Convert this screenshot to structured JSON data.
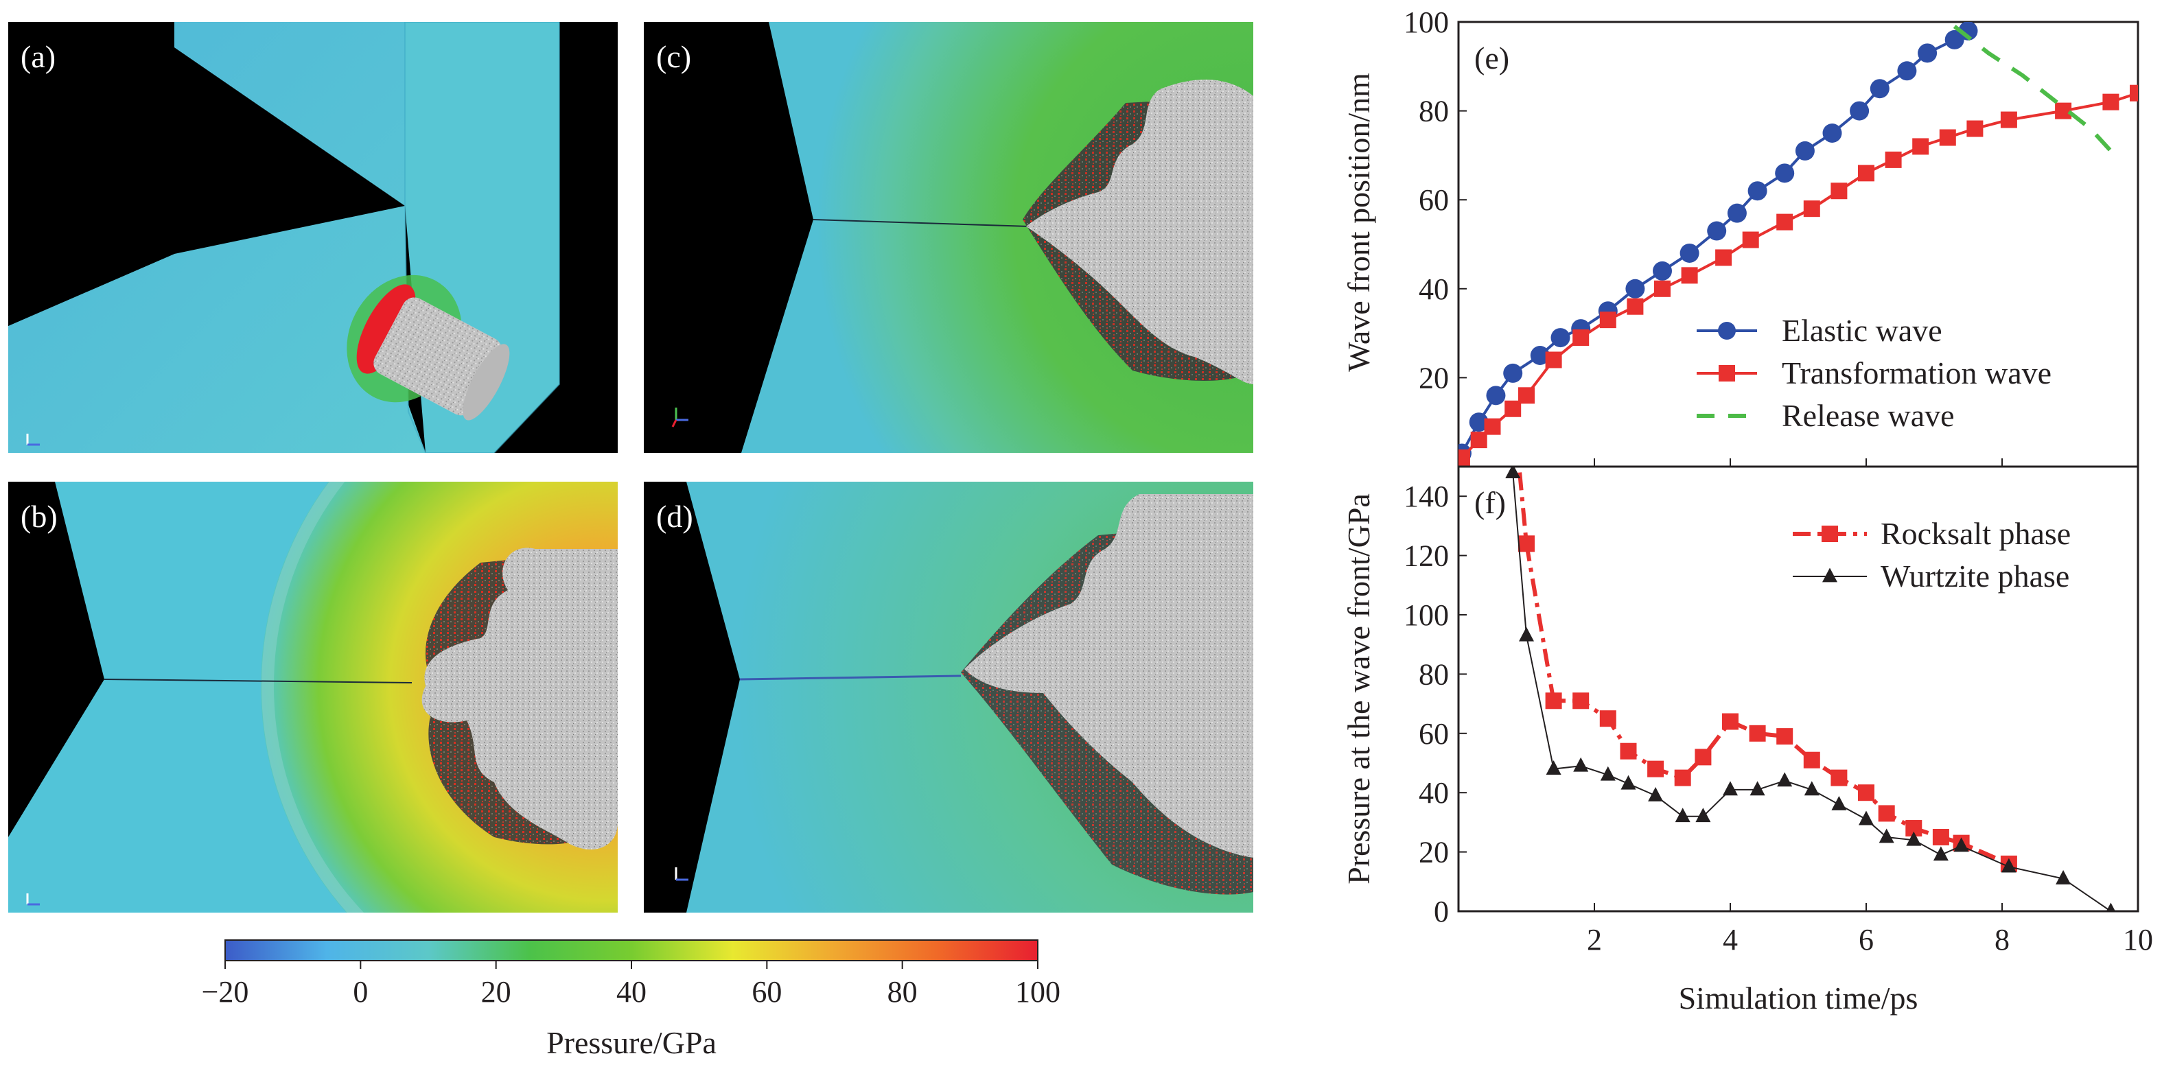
{
  "panels": {
    "a": {
      "label": "(a)"
    },
    "b": {
      "label": "(b)"
    },
    "c": {
      "label": "(c)"
    },
    "d": {
      "label": "(d)"
    }
  },
  "colorbar": {
    "title": "Pressure/GPa",
    "min": -20,
    "max": 100,
    "ticks": [
      "−20",
      "0",
      "20",
      "40",
      "60",
      "80",
      "100"
    ],
    "tick_values": [
      -20,
      0,
      20,
      40,
      60,
      80,
      100
    ],
    "colors": [
      "#3c5cc8",
      "#4fb4e8",
      "#5cc8c8",
      "#4cc24a",
      "#78cc30",
      "#e8e830",
      "#f0a830",
      "#f06a28",
      "#e82030"
    ]
  },
  "colors": {
    "elastic": "#2d4ea6",
    "transformation": "#e8312f",
    "release": "#4cbb47",
    "rocksalt": "#e8312f",
    "wurtzite": "#231f20",
    "background_black": "#000000",
    "material_cyan": "#52c4d8",
    "cluster_gray": "#bfbfbf"
  },
  "chart_data": [
    {
      "type": "line",
      "panel_label": "(e)",
      "xlabel": "",
      "ylabel": "Wave front position/nm",
      "xlim": [
        0,
        10
      ],
      "ylim": [
        0,
        100
      ],
      "yticks": [
        20,
        40,
        60,
        80,
        100
      ],
      "legend_position": "center-right",
      "series": [
        {
          "name": "Elastic wave",
          "color": "#2d4ea6",
          "marker": "circle",
          "x": [
            0.05,
            0.3,
            0.55,
            0.8,
            1.2,
            1.5,
            1.8,
            2.2,
            2.6,
            3.0,
            3.4,
            3.8,
            4.1,
            4.4,
            4.8,
            5.1,
            5.5,
            5.9,
            6.2,
            6.6,
            6.9,
            7.3,
            7.5
          ],
          "y": [
            3,
            10,
            16,
            21,
            25,
            29,
            31,
            35,
            40,
            44,
            48,
            53,
            57,
            62,
            66,
            71,
            75,
            80,
            85,
            89,
            93,
            96,
            98
          ]
        },
        {
          "name": "Transformation wave",
          "color": "#e8312f",
          "marker": "square",
          "x": [
            0.05,
            0.3,
            0.5,
            0.8,
            1.0,
            1.4,
            1.8,
            2.2,
            2.6,
            3.0,
            3.4,
            3.9,
            4.3,
            4.8,
            5.2,
            5.6,
            6.0,
            6.4,
            6.8,
            7.2,
            7.6,
            8.1,
            8.9,
            9.6,
            10.0
          ],
          "y": [
            2,
            6,
            9,
            13,
            16,
            24,
            29,
            33,
            36,
            40,
            43,
            47,
            51,
            55,
            58,
            62,
            66,
            69,
            72,
            74,
            76,
            78,
            80,
            82,
            84
          ]
        },
        {
          "name": "Release wave",
          "color": "#4cbb47",
          "marker": "none",
          "dashed": true,
          "x": [
            7.3,
            7.8,
            8.3,
            8.8,
            9.3,
            9.6
          ],
          "y": [
            99,
            93,
            88,
            82,
            76,
            71
          ]
        }
      ]
    },
    {
      "type": "line",
      "panel_label": "(f)",
      "xlabel": "Simulation time/ps",
      "ylabel": "Pressure at the wave front/GPa",
      "xlim": [
        0,
        10
      ],
      "ylim": [
        0,
        150
      ],
      "xticks": [
        2,
        4,
        6,
        8,
        10
      ],
      "yticks": [
        0,
        20,
        40,
        60,
        80,
        100,
        120,
        140
      ],
      "legend_position": "top-right",
      "series": [
        {
          "name": "Rocksalt phase",
          "color": "#e8312f",
          "marker": "square",
          "x": [
            0.85,
            1.0,
            1.4,
            1.8,
            2.2,
            2.5,
            2.9,
            3.3,
            3.6,
            4.0,
            4.4,
            4.8,
            5.2,
            5.6,
            6.0,
            6.3,
            6.7,
            7.1,
            7.4,
            8.1
          ],
          "y": [
            160,
            124,
            71,
            71,
            65,
            54,
            48,
            45,
            52,
            64,
            60,
            59,
            51,
            45,
            40,
            33,
            28,
            25,
            23,
            16
          ]
        },
        {
          "name": "Wurtzite phase",
          "color": "#231f20",
          "marker": "triangle",
          "x": [
            0.8,
            1.0,
            1.4,
            1.8,
            2.2,
            2.5,
            2.9,
            3.3,
            3.6,
            4.0,
            4.4,
            4.8,
            5.2,
            5.6,
            6.0,
            6.3,
            6.7,
            7.1,
            7.4,
            8.1,
            8.9,
            9.6
          ],
          "y": [
            148,
            93,
            48,
            49,
            46,
            43,
            39,
            32,
            32,
            41,
            41,
            44,
            41,
            36,
            31,
            25,
            24,
            19,
            22,
            15,
            11,
            0
          ]
        }
      ]
    }
  ]
}
